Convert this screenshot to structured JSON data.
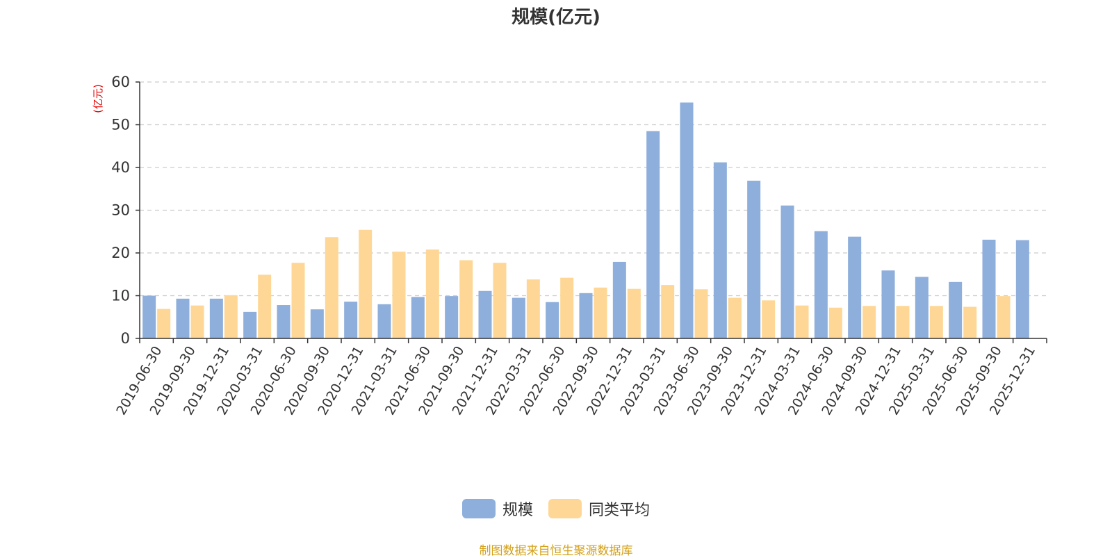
{
  "chart_data": {
    "type": "bar",
    "title": "规模(亿元)",
    "ylabel": "(亿元)",
    "ylim": [
      0,
      60
    ],
    "yticks": [
      0,
      10,
      20,
      30,
      40,
      50,
      60
    ],
    "grid": true,
    "legend_position": "bottom-center",
    "categories": [
      "2019-06-30",
      "2019-09-30",
      "2019-12-31",
      "2020-03-31",
      "2020-06-30",
      "2020-09-30",
      "2020-12-31",
      "2021-03-31",
      "2021-06-30",
      "2021-09-30",
      "2021-12-31",
      "2022-03-31",
      "2022-06-30",
      "2022-09-30",
      "2022-12-31",
      "2023-03-31",
      "2023-06-30",
      "2023-09-30",
      "2023-12-31",
      "2024-03-31",
      "2024-06-30",
      "2024-09-30",
      "2024-12-31",
      "2025-03-31",
      "2025-06-30",
      "2025-09-30",
      "2025-12-31"
    ],
    "series": [
      {
        "name": "规模",
        "color": "#8eaedb",
        "values": [
          10.0,
          9.3,
          9.3,
          6.2,
          7.8,
          6.8,
          8.6,
          8.0,
          9.7,
          9.9,
          11.1,
          9.5,
          8.5,
          10.6,
          17.9,
          48.5,
          55.2,
          41.2,
          36.9,
          31.1,
          25.1,
          23.8,
          15.9,
          14.4,
          13.2,
          23.1,
          23.0
        ]
      },
      {
        "name": "同类平均",
        "color": "#fed796",
        "values": [
          6.9,
          7.7,
          10.1,
          14.9,
          17.7,
          23.7,
          25.4,
          20.3,
          20.8,
          18.3,
          17.7,
          13.8,
          14.2,
          11.9,
          11.6,
          12.5,
          11.5,
          9.5,
          8.9,
          7.7,
          7.2,
          7.6,
          7.6,
          7.6,
          7.4,
          9.9,
          null
        ]
      }
    ]
  },
  "colors": {
    "axis_label": "#e60000",
    "text": "#333333",
    "source": "#d4a017",
    "grid": "#cccccc"
  },
  "source_text": "制图数据来自恒生聚源数据库"
}
